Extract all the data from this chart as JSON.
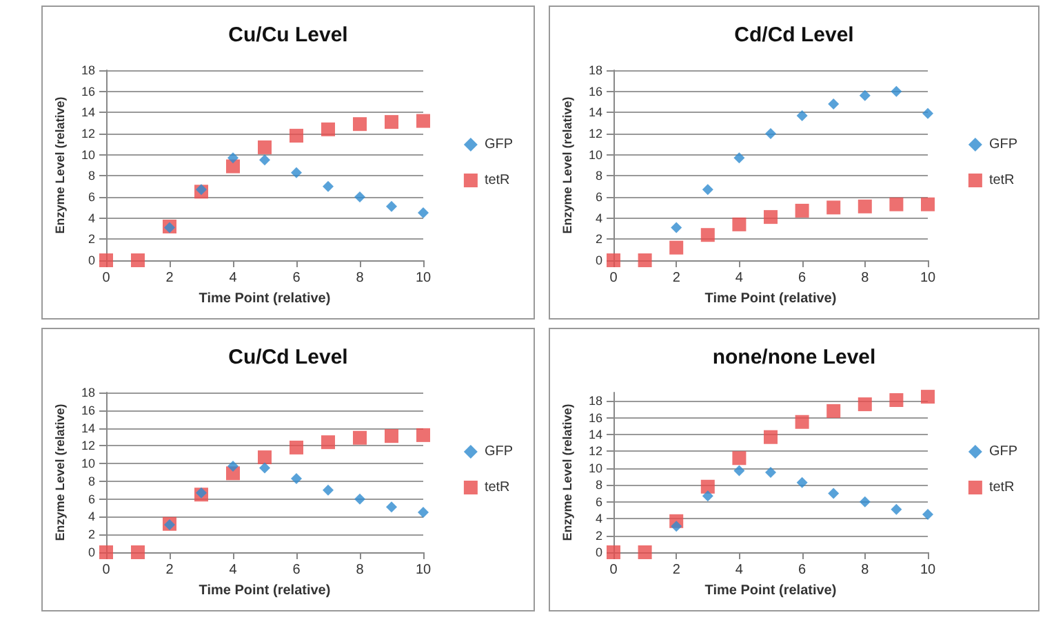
{
  "chart_data": [
    {
      "type": "scatter",
      "title": "Cu/Cu Level",
      "xlabel": "Time Point (relative)",
      "ylabel": "Enzyme Level (relative)",
      "x": [
        0,
        1,
        2,
        3,
        4,
        5,
        6,
        7,
        8,
        9,
        10
      ],
      "xlim": [
        0,
        10
      ],
      "xticks": [
        0,
        2,
        4,
        6,
        8,
        10
      ],
      "ylim": [
        0,
        18
      ],
      "yticks": [
        0,
        2,
        4,
        6,
        8,
        10,
        12,
        14,
        16,
        18
      ],
      "grid": "y",
      "legend": "right",
      "series": [
        {
          "name": "GFP",
          "color": "#2e8bd0",
          "marker": "diamond",
          "values": [
            null,
            null,
            3.1,
            6.7,
            9.7,
            9.5,
            8.3,
            7.0,
            6.0,
            5.1,
            4.5
          ]
        },
        {
          "name": "tetR",
          "color": "#e84c4c",
          "marker": "square",
          "values": [
            0,
            0,
            3.2,
            6.5,
            8.9,
            10.7,
            11.8,
            12.4,
            12.9,
            13.1,
            13.2
          ]
        }
      ]
    },
    {
      "type": "scatter",
      "title": "Cd/Cd Level",
      "xlabel": "Time Point (relative)",
      "ylabel": "Enzyme Level (relative)",
      "x": [
        0,
        1,
        2,
        3,
        4,
        5,
        6,
        7,
        8,
        9,
        10
      ],
      "xlim": [
        0,
        10
      ],
      "xticks": [
        0,
        2,
        4,
        6,
        8,
        10
      ],
      "ylim": [
        0,
        18
      ],
      "yticks": [
        0,
        2,
        4,
        6,
        8,
        10,
        12,
        14,
        16,
        18
      ],
      "grid": "y",
      "legend": "right",
      "series": [
        {
          "name": "GFP",
          "color": "#2e8bd0",
          "marker": "diamond",
          "values": [
            null,
            null,
            3.1,
            6.7,
            9.7,
            12.0,
            13.7,
            14.8,
            15.6,
            16.0,
            13.9
          ]
        },
        {
          "name": "tetR",
          "color": "#e84c4c",
          "marker": "square",
          "values": [
            0,
            0,
            1.2,
            2.4,
            3.4,
            4.1,
            4.7,
            5.0,
            5.1,
            5.3,
            5.3
          ]
        }
      ]
    },
    {
      "type": "scatter",
      "title": "Cu/Cd Level",
      "xlabel": "Time Point (relative)",
      "ylabel": "Enzyme Level (relative)",
      "x": [
        0,
        1,
        2,
        3,
        4,
        5,
        6,
        7,
        8,
        9,
        10
      ],
      "xlim": [
        0,
        10
      ],
      "xticks": [
        0,
        2,
        4,
        6,
        8,
        10
      ],
      "ylim": [
        0,
        18
      ],
      "yticks": [
        0,
        2,
        4,
        6,
        8,
        10,
        12,
        14,
        16,
        18
      ],
      "grid": "y",
      "legend": "right",
      "series": [
        {
          "name": "GFP",
          "color": "#2e8bd0",
          "marker": "diamond",
          "values": [
            null,
            null,
            3.1,
            6.7,
            9.7,
            9.5,
            8.3,
            7.0,
            6.0,
            5.1,
            4.5
          ]
        },
        {
          "name": "tetR",
          "color": "#e84c4c",
          "marker": "square",
          "values": [
            0,
            0,
            3.2,
            6.5,
            8.9,
            10.7,
            11.8,
            12.4,
            12.9,
            13.1,
            13.2
          ]
        }
      ]
    },
    {
      "type": "scatter",
      "title": "none/none Level",
      "xlabel": "Time Point (relative)",
      "ylabel": "Enzyme Level (relative)",
      "x": [
        0,
        1,
        2,
        3,
        4,
        5,
        6,
        7,
        8,
        9,
        10
      ],
      "xlim": [
        0,
        10
      ],
      "xticks": [
        0,
        2,
        4,
        6,
        8,
        10
      ],
      "ylim": [
        0,
        19
      ],
      "yticks": [
        0,
        2,
        4,
        6,
        8,
        10,
        12,
        14,
        16,
        18
      ],
      "grid": "y",
      "legend": "right",
      "series": [
        {
          "name": "GFP",
          "color": "#2e8bd0",
          "marker": "diamond",
          "values": [
            null,
            null,
            3.1,
            6.7,
            9.7,
            9.5,
            8.3,
            7.0,
            6.0,
            5.1,
            4.5
          ]
        },
        {
          "name": "tetR",
          "color": "#e84c4c",
          "marker": "square",
          "values": [
            0,
            0,
            3.7,
            7.8,
            11.2,
            13.7,
            15.5,
            16.8,
            17.6,
            18.1,
            18.5
          ]
        }
      ]
    }
  ]
}
